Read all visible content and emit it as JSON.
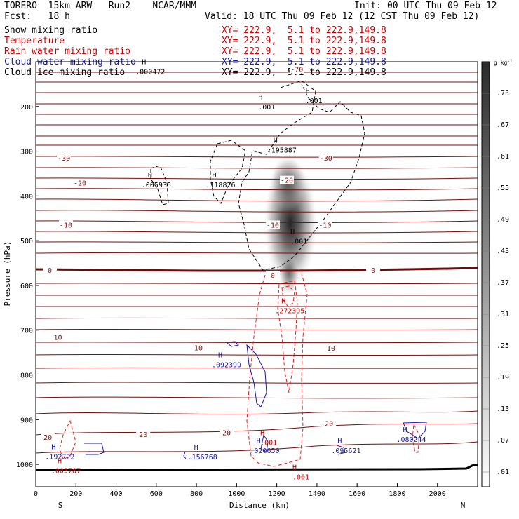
{
  "header": {
    "model": "TORERO",
    "resolution": "15km ARW",
    "run": "Run2",
    "org": "NCAR/MMM",
    "init": "Init: 00 UTC Thu 09 Feb 12",
    "fcst_label": "Fcst:",
    "fcst_hours": "18 h",
    "valid": "Valid: 18 UTC Thu 09 Feb 12 (12 CST Thu 09 Feb 12)"
  },
  "fields": [
    {
      "name": "Snow mixing ratio",
      "xy": "XY= 222.9,  5.1 to 222.9,149.8",
      "color": "#000000"
    },
    {
      "name": "Temperature",
      "xy": "XY= 222.9,  5.1 to 222.9,149.8",
      "color": "#cc0000"
    },
    {
      "name": "Rain water mixing ratio",
      "xy": "XY= 222.9,  5.1 to 222.9,149.8",
      "color": "#cc0000"
    },
    {
      "name": "Cloud water mixing ratio",
      "xy": "XY= 222.9,  5.1 to 222.9,149.8",
      "color": "#1a1aa6"
    },
    {
      "name": "Cloud ice mixing ratio",
      "xy": "XY= 222.9,  5.1 to 222.9,149.8",
      "color": "#000000"
    }
  ],
  "chart_data": {
    "type": "cross-section contour",
    "xlabel": "Distance (km)",
    "ylabel": "Pressure (hPa)",
    "xlim": [
      0,
      2200
    ],
    "ylim": [
      1050,
      100
    ],
    "x_ticks": [
      0,
      200,
      400,
      600,
      800,
      1000,
      1200,
      1400,
      1600,
      1800,
      2000
    ],
    "y_ticks": [
      200,
      300,
      400,
      500,
      600,
      700,
      800,
      900,
      1000
    ],
    "left_end": "S",
    "right_end": "N",
    "colorbar": {
      "unit": "g kg",
      "unit_exp": "-1",
      "levels": [
        ".73",
        ".67",
        ".61",
        ".55",
        ".49",
        ".43",
        ".37",
        ".31",
        ".25",
        ".19",
        ".13",
        ".07",
        ".01"
      ]
    },
    "temperature_labels": [
      {
        "text": "-70",
        "x": 1300,
        "p": 118
      },
      {
        "text": "-30",
        "x": 140,
        "p": 316
      },
      {
        "text": "-30",
        "x": 1445,
        "p": 316
      },
      {
        "text": "-20",
        "x": 220,
        "p": 372
      },
      {
        "text": "-20",
        "x": 1250,
        "p": 366
      },
      {
        "text": "-10",
        "x": 150,
        "p": 466
      },
      {
        "text": "-10",
        "x": 1180,
        "p": 466
      },
      {
        "text": "-10",
        "x": 1440,
        "p": 466
      },
      {
        "text": "0",
        "x": 70,
        "p": 567
      },
      {
        "text": "0",
        "x": 1180,
        "p": 578
      },
      {
        "text": "0",
        "x": 1680,
        "p": 567
      },
      {
        "text": "10",
        "x": 110,
        "p": 717
      },
      {
        "text": "10",
        "x": 810,
        "p": 740
      },
      {
        "text": "10",
        "x": 1470,
        "p": 741
      },
      {
        "text": "20",
        "x": 60,
        "p": 940
      },
      {
        "text": "20",
        "x": 535,
        "p": 934
      },
      {
        "text": "20",
        "x": 950,
        "p": 930
      },
      {
        "text": "20",
        "x": 1460,
        "p": 910
      }
    ],
    "max_labels": [
      {
        "text": ".000472",
        "x": 570,
        "p": 123,
        "color": "#000000"
      },
      {
        "text": ".001",
        "x": 1385,
        "p": 188,
        "color": "#000000"
      },
      {
        "text": ".001",
        "x": 1150,
        "p": 202,
        "color": "#000000"
      },
      {
        "text": ".195887",
        "x": 1225,
        "p": 298,
        "color": "#000000"
      },
      {
        "text": ".005936",
        "x": 600,
        "p": 376,
        "color": "#000000"
      },
      {
        "text": ".118826",
        "x": 920,
        "p": 376,
        "color": "#000000"
      },
      {
        "text": ".001",
        "x": 1310,
        "p": 502,
        "color": "#000000"
      },
      {
        "text": ".272395",
        "x": 1265,
        "p": 657,
        "color": "#cc0000"
      },
      {
        "text": ".092399",
        "x": 950,
        "p": 778,
        "color": "#1a1aa6"
      },
      {
        "text": ".001",
        "x": 1160,
        "p": 952,
        "color": "#cc0000"
      },
      {
        "text": ".192722",
        "x": 120,
        "p": 983,
        "color": "#1a1aa6"
      },
      {
        "text": ".005787",
        "x": 150,
        "p": 1015,
        "color": "#cc0000"
      },
      {
        "text": ".156768",
        "x": 830,
        "p": 984,
        "color": "#1a1aa6"
      },
      {
        "text": ".020650",
        "x": 1140,
        "p": 970,
        "color": "#1a1aa6"
      },
      {
        "text": ".095621",
        "x": 1545,
        "p": 970,
        "color": "#1a1aa6"
      },
      {
        "text": ".080244",
        "x": 1870,
        "p": 945,
        "color": "#1a1aa6"
      },
      {
        "text": ".001",
        "x": 1320,
        "p": 1029,
        "color": "#cc0000"
      }
    ]
  }
}
